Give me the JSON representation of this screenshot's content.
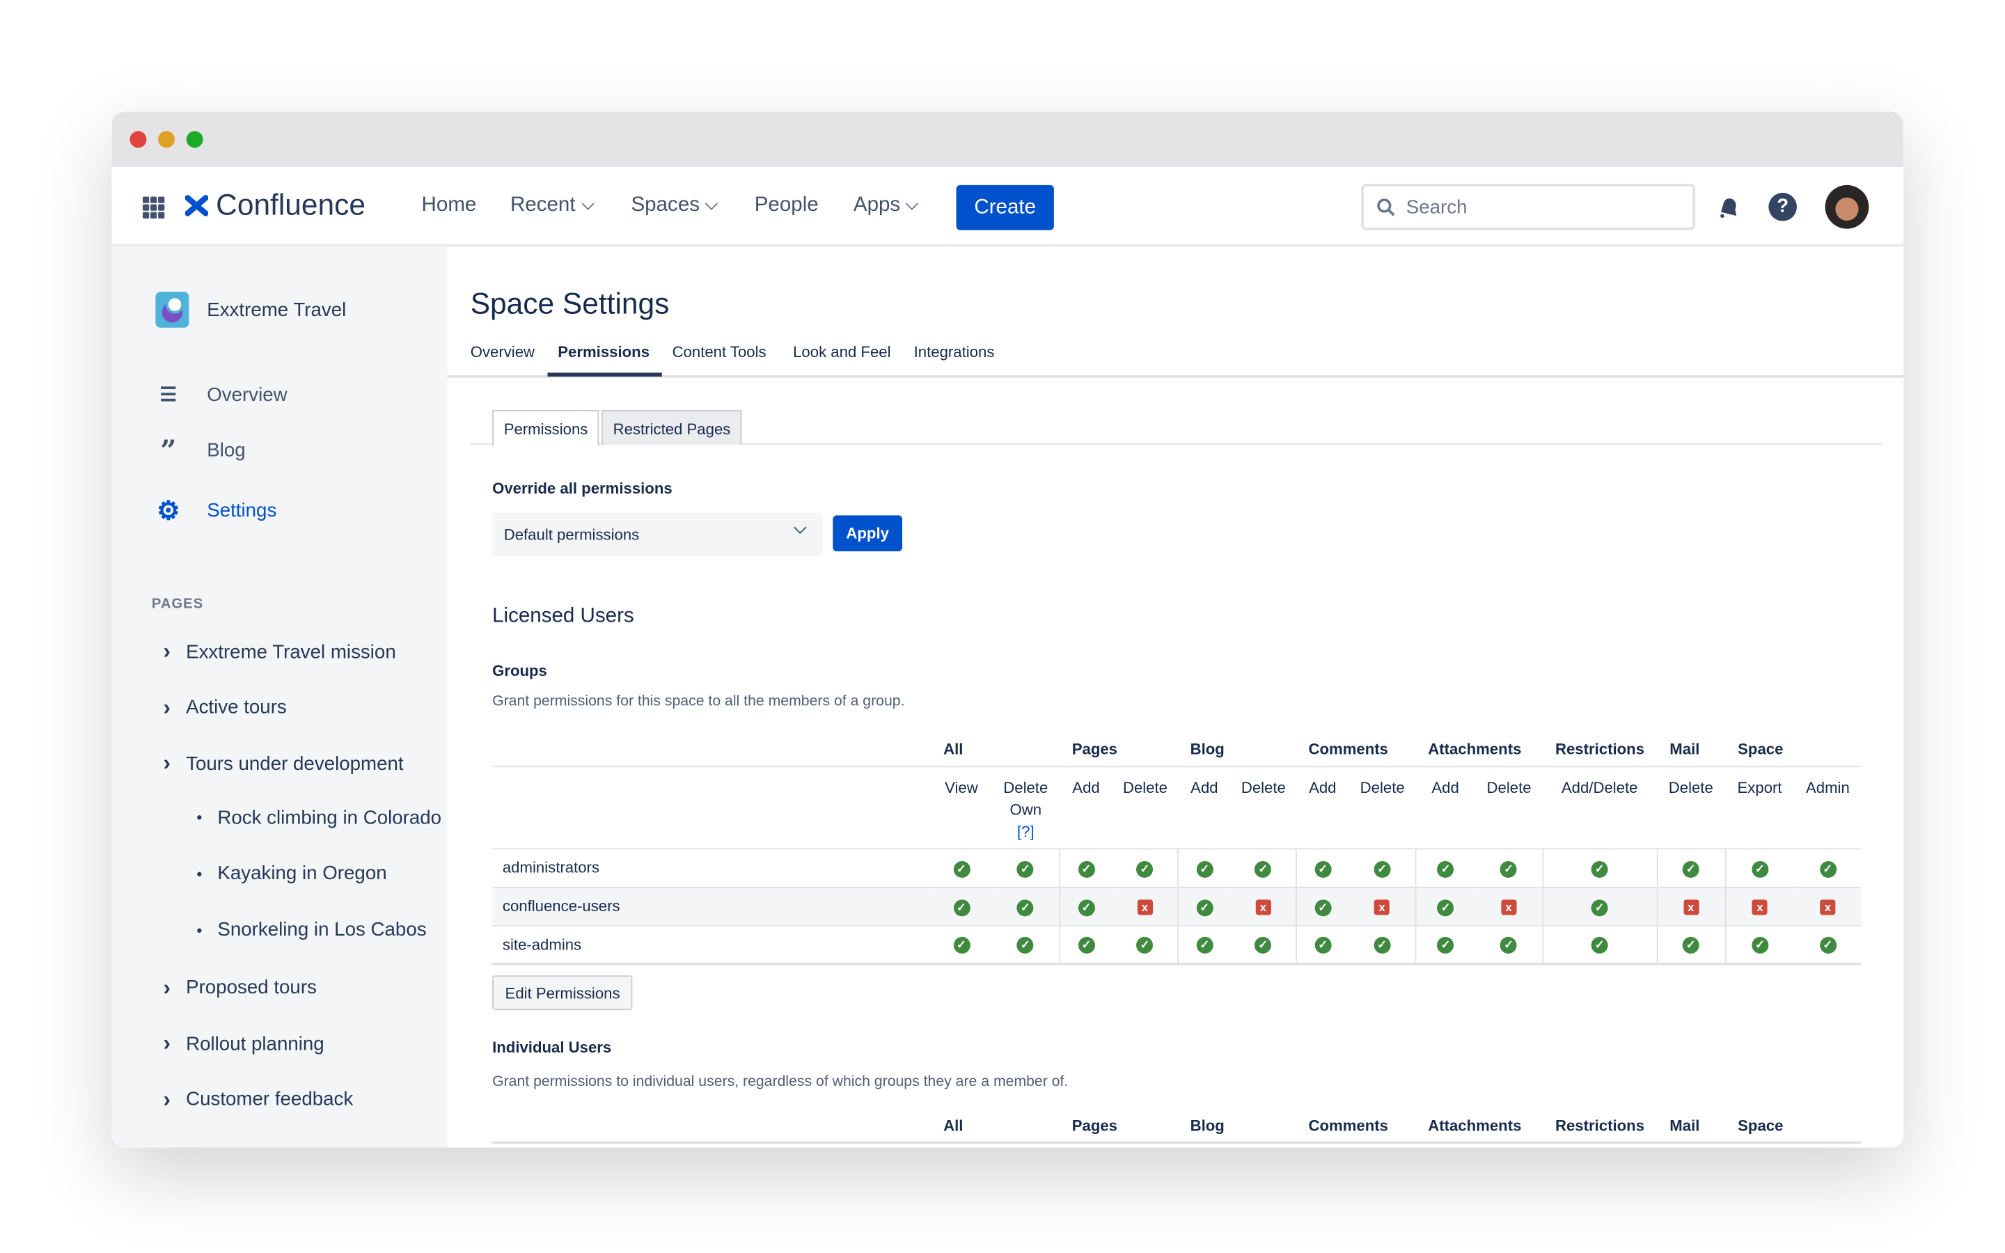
{
  "colors": {
    "accent": "#0052cc",
    "ok": "#3f8a3f",
    "denied": "#cc4b3c"
  },
  "nav": {
    "brand": "Confluence",
    "home": "Home",
    "recent": "Recent",
    "spaces": "Spaces",
    "people": "People",
    "apps": "Apps",
    "create": "Create",
    "search_placeholder": "Search",
    "icons": [
      "app-grid-icon",
      "confluence-logo-icon",
      "bell-icon",
      "help-icon",
      "avatar"
    ]
  },
  "sidebar": {
    "space_name": "Exxtreme Travel",
    "items": [
      {
        "label": "Overview",
        "icon": "lines-icon"
      },
      {
        "label": "Blog",
        "icon": "quote-icon"
      },
      {
        "label": "Settings",
        "icon": "gear-icon"
      }
    ],
    "pages_heading": "PAGES",
    "pages": [
      {
        "label": "Exxtreme Travel mission",
        "type": "expand"
      },
      {
        "label": "Active tours",
        "type": "expand"
      },
      {
        "label": "Tours under development",
        "type": "expand"
      },
      {
        "label": "Rock climbing in Colorado",
        "type": "child"
      },
      {
        "label": "Kayaking in Oregon",
        "type": "child"
      },
      {
        "label": "Snorkeling in Los Cabos",
        "type": "child"
      },
      {
        "label": "Proposed tours",
        "type": "expand"
      },
      {
        "label": "Rollout planning",
        "type": "expand"
      },
      {
        "label": "Customer feedback",
        "type": "expand"
      }
    ]
  },
  "main": {
    "title": "Space Settings",
    "tabs": [
      "Overview",
      "Permissions",
      "Content Tools",
      "Look and Feel",
      "Integrations"
    ],
    "active_tab": "Permissions",
    "subtabs": [
      "Permissions",
      "Restricted Pages"
    ],
    "override_label": "Override all permissions",
    "override_value": "Default permissions",
    "apply": "Apply",
    "licensed": "Licensed Users",
    "groups_label": "Groups",
    "groups_desc": "Grant permissions for this space to all the members of a group.",
    "group_headers": [
      "All",
      "Pages",
      "Blog",
      "Comments",
      "Attachments",
      "Restrictions",
      "Mail",
      "Space"
    ],
    "sub_headers": [
      "View",
      "Delete Own",
      "Add",
      "Delete",
      "Add",
      "Delete",
      "Add",
      "Delete",
      "Add",
      "Delete",
      "Add/Delete",
      "Delete",
      "Export",
      "Admin"
    ],
    "help_link": "[?]",
    "rows": [
      {
        "name": "administrators",
        "perms": [
          true,
          true,
          true,
          true,
          true,
          true,
          true,
          true,
          true,
          true,
          true,
          true,
          true,
          true
        ]
      },
      {
        "name": "confluence-users",
        "perms": [
          true,
          true,
          true,
          false,
          true,
          false,
          true,
          false,
          true,
          false,
          true,
          false,
          false,
          false
        ]
      },
      {
        "name": "site-admins",
        "perms": [
          true,
          true,
          true,
          true,
          true,
          true,
          true,
          true,
          true,
          true,
          true,
          true,
          true,
          true
        ]
      }
    ],
    "edit_permissions": "Edit Permissions",
    "individual_label": "Individual Users",
    "individual_desc": "Grant permissions to individual users, regardless of which groups they are a member of."
  }
}
